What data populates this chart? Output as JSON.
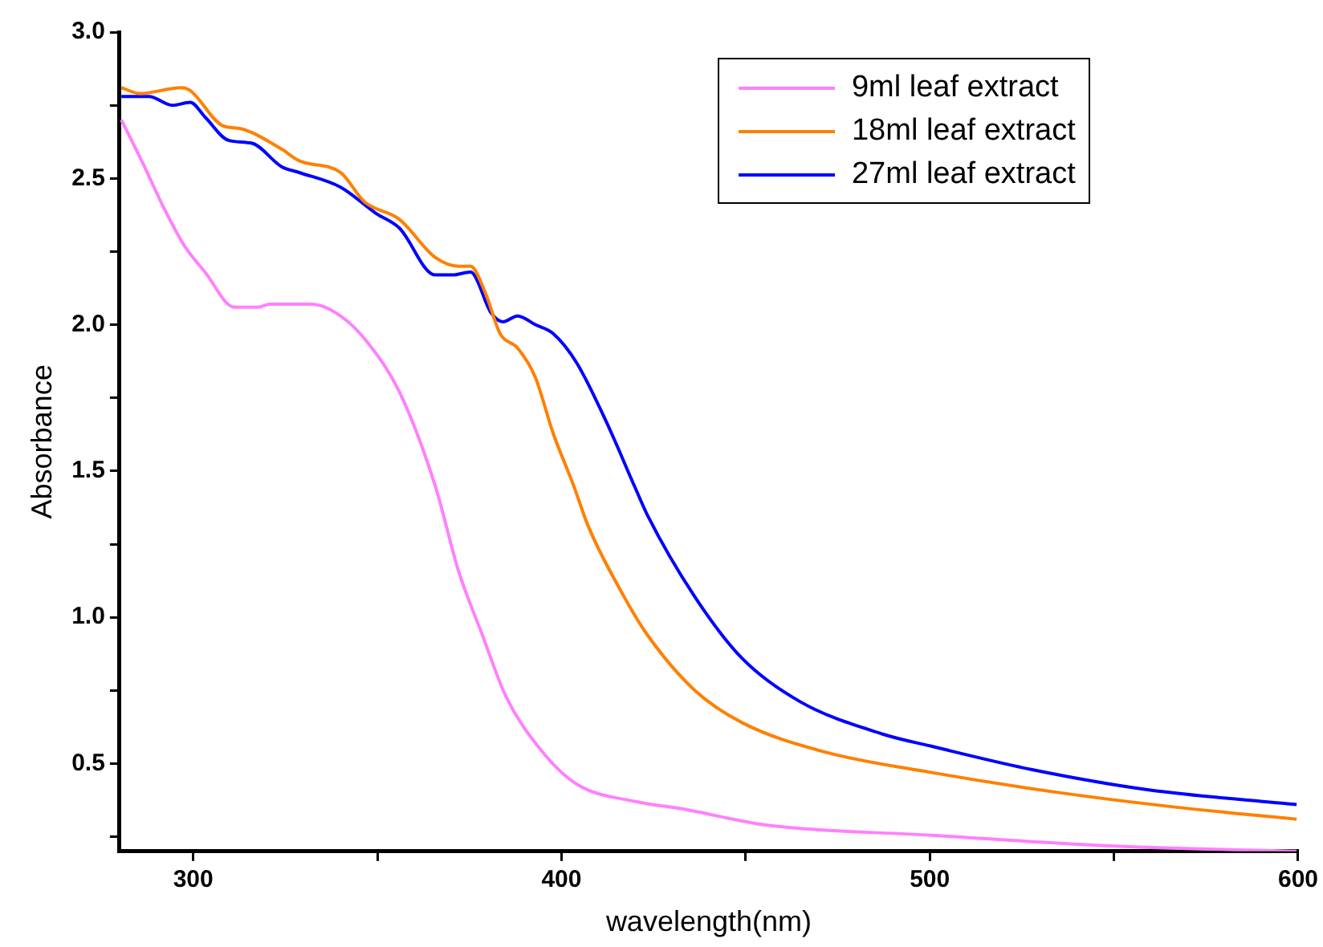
{
  "chart_data": {
    "type": "line",
    "xlabel": "wavelength(nm)",
    "ylabel": "Absorbance",
    "xlim": [
      280,
      600
    ],
    "ylim": [
      0.2,
      3.0
    ],
    "xticks": [
      300,
      {
        "value": 350,
        "label": null
      },
      400,
      {
        "value": 450,
        "label": null
      },
      500,
      {
        "value": 550,
        "label": null
      },
      600
    ],
    "yticks": [
      {
        "value": 0.25,
        "label": null
      },
      0.5,
      {
        "value": 0.75,
        "label": null
      },
      {
        "value": 1,
        "label": "1.0"
      },
      {
        "value": 1.25,
        "label": null
      },
      1.5,
      {
        "value": 1.75,
        "label": null
      },
      {
        "value": 2,
        "label": "2.0"
      },
      {
        "value": 2.25,
        "label": null
      },
      2.5,
      {
        "value": 2.75,
        "label": null
      },
      {
        "value": 3,
        "label": "3.0"
      }
    ],
    "grid": false,
    "legend": "top right",
    "marker": "none",
    "line_style": "solid",
    "series": [
      {
        "name": "9ml leaf extract",
        "color": "#ff80ff",
        "x": [
          280.5,
          286.4,
          292,
          297.6,
          303.2,
          311.2,
          317.6,
          320.8,
          332,
          340,
          347.3,
          356,
          365.7,
          372,
          378.5,
          384.9,
          394.5,
          404.1,
          420.1,
          433,
          455.4,
          500.2,
          551.5,
          599.6
        ],
        "values": [
          2.7,
          2.55,
          2.4,
          2.27,
          2.18,
          2.06,
          2.06,
          2.07,
          2.07,
          2.03,
          1.94,
          1.77,
          1.45,
          1.16,
          0.94,
          0.73,
          0.545,
          0.43,
          0.37,
          0.345,
          0.29,
          0.255,
          0.217,
          0.2
        ]
      },
      {
        "name": "18ml leaf extract",
        "color": "#ff8000",
        "x": [
          280.5,
          285.6,
          296.8,
          299.2,
          308,
          312.8,
          324,
          328.8,
          340,
          346.5,
          356,
          365.7,
          372,
          375.3,
          379.3,
          383.3,
          388.1,
          392.9,
          397.7,
          403.3,
          407.3,
          417,
          423.3,
          436.2,
          449,
          471.4,
          500.2,
          535.5,
          567.5,
          599.6
        ],
        "values": [
          2.81,
          2.79,
          2.81,
          2.8,
          2.68,
          2.67,
          2.6,
          2.56,
          2.52,
          2.42,
          2.36,
          2.23,
          2.2,
          2.2,
          2.11,
          1.97,
          1.92,
          1.82,
          1.63,
          1.45,
          1.31,
          1.07,
          0.94,
          0.75,
          0.64,
          0.54,
          0.47,
          0.4,
          0.35,
          0.31
        ]
      },
      {
        "name": "27ml leaf extract",
        "color": "#0000ff",
        "x": [
          280.5,
          288,
          294.4,
          299.2,
          303.2,
          309.6,
          316,
          324,
          328.8,
          340,
          349.7,
          356,
          365.7,
          370.5,
          375.3,
          380.9,
          384.1,
          388.1,
          392.9,
          397.7,
          404.1,
          412.1,
          420.1,
          423.3,
          436.2,
          449,
          465,
          487.4,
          500.2,
          527.5,
          559.5,
          599.6
        ],
        "values": [
          2.78,
          2.78,
          2.75,
          2.76,
          2.71,
          2.63,
          2.62,
          2.54,
          2.52,
          2.47,
          2.38,
          2.33,
          2.17,
          2.17,
          2.18,
          2.04,
          2.01,
          2.03,
          2.0,
          1.97,
          1.87,
          1.67,
          1.44,
          1.35,
          1.07,
          0.86,
          0.71,
          0.6,
          0.56,
          0.48,
          0.41,
          0.36
        ]
      }
    ]
  }
}
